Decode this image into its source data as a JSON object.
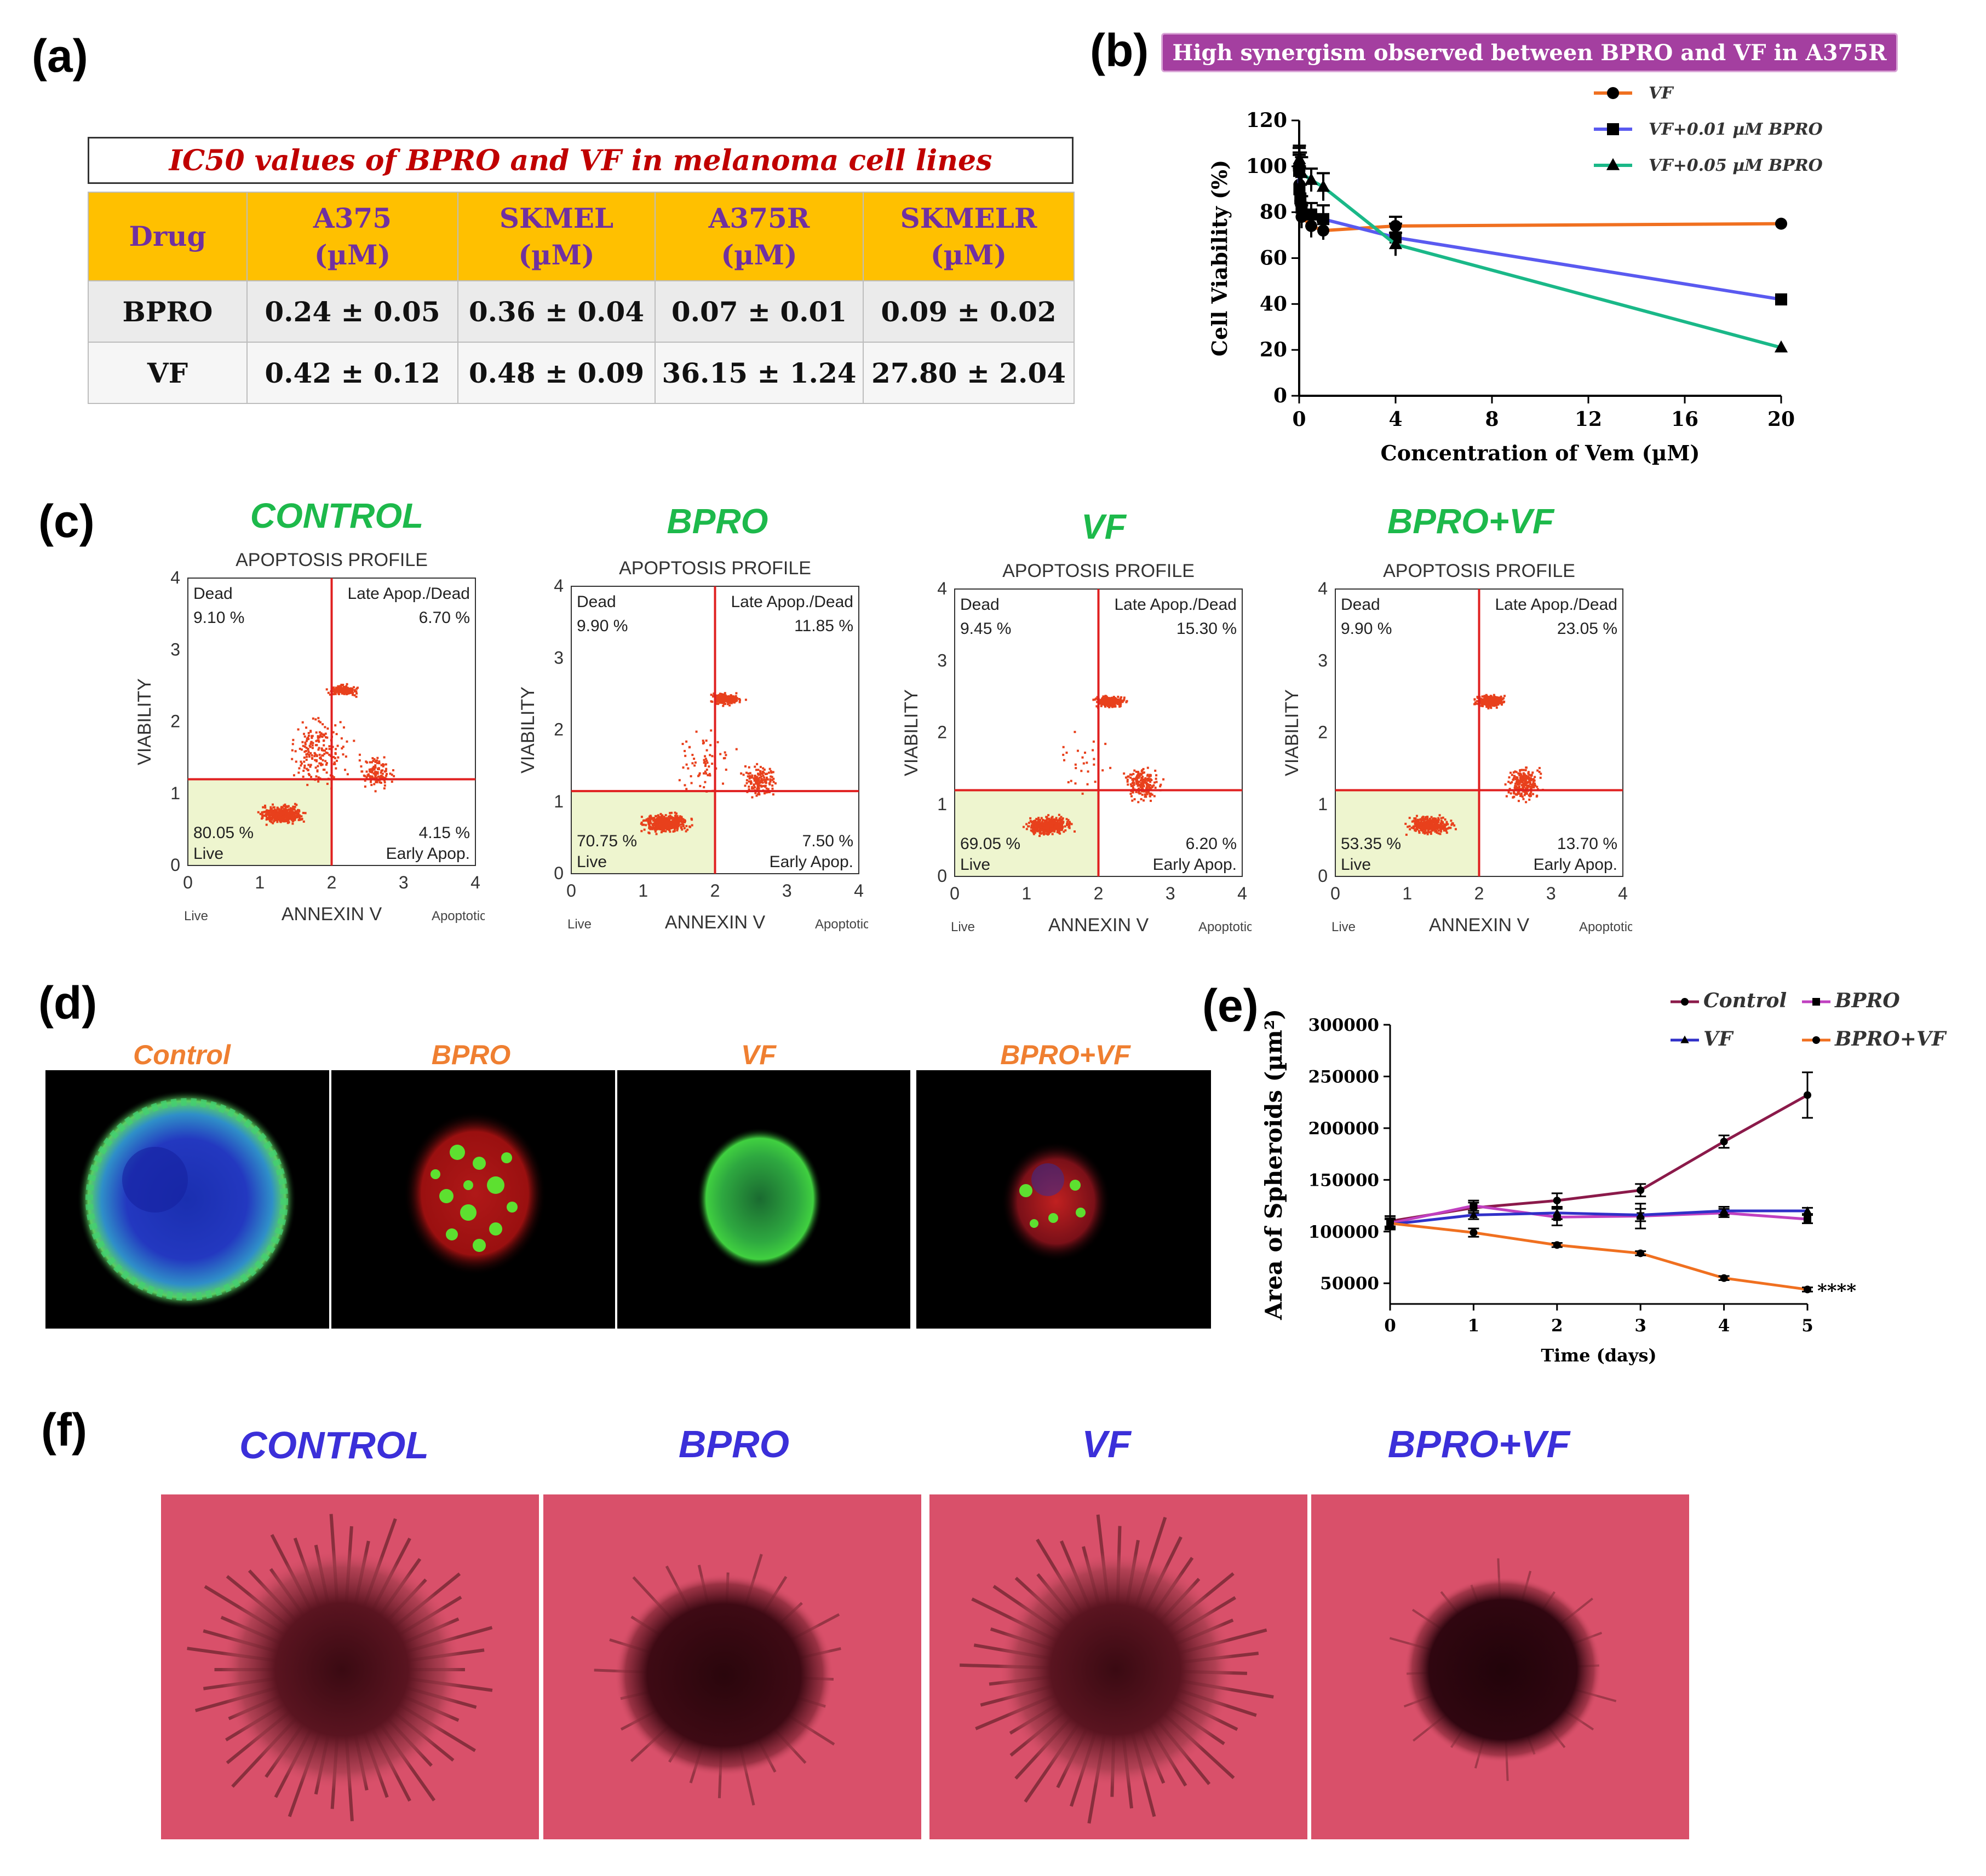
{
  "panel_labels": {
    "a": "(a)",
    "b": "(b)",
    "c": "(c)",
    "d": "(d)",
    "e": "(e)",
    "f": "(f)"
  },
  "table": {
    "title": "IC50 values of BPRO and VF in melanoma cell lines",
    "headers": [
      {
        "line1": "Drug",
        "line2": ""
      },
      {
        "line1": "A375",
        "line2": "(µM)"
      },
      {
        "line1": "SKMEL",
        "line2": "(µM)"
      },
      {
        "line1": "A375R",
        "line2": "(µM)"
      },
      {
        "line1": "SKMELR",
        "line2": "(µM)"
      }
    ],
    "rows": [
      [
        "BPRO",
        "0.24 ± 0.05",
        "0.36 ± 0.04",
        "0.07 ± 0.01",
        "0.09 ± 0.02"
      ],
      [
        "VF",
        "0.42 ± 0.12",
        "0.48 ± 0.09",
        "36.15 ± 1.24",
        "27.80 ± 2.04"
      ]
    ]
  },
  "banner": "High synergism observed between BPRO and VF in A375R",
  "flow_titles": [
    "CONTROL",
    "BPRO",
    "VF",
    "BPRO+VF"
  ],
  "spheroid_titles": [
    "Control",
    "BPRO",
    "VF",
    "BPRO+VF"
  ],
  "brightfield_titles": [
    "CONTROL",
    "BPRO",
    "VF",
    "BPRO+VF"
  ],
  "colors": {
    "table_header_bg": "#ffc000",
    "table_header_text": "#7030a0",
    "table_title": "#c00000",
    "banner_bg": "#a43fa0",
    "flow_title": "#1db94b",
    "spheroid_title": "#ef7f31",
    "brightfield_title": "#3b2fd9",
    "flow_points": "#e8401c",
    "flow_lines": "#e02020",
    "flow_live_fill": "#eef5cf"
  },
  "chart_data": [
    {
      "type": "line",
      "panel": "b",
      "xlabel": "Concentration of Vem (µM)",
      "ylabel": "Cell Viability (%)",
      "xlim": [
        0,
        20
      ],
      "ylim": [
        0,
        120
      ],
      "xticks": [
        0,
        4,
        8,
        12,
        16,
        20
      ],
      "yticks": [
        0,
        20,
        40,
        60,
        80,
        100,
        120
      ],
      "legend_position": "top-right",
      "series": [
        {
          "name": "VF",
          "color": "#f07020",
          "marker": "circle",
          "x": [
            0,
            0.01,
            0.05,
            0.1,
            0.5,
            1,
            4,
            20
          ],
          "y": [
            100,
            92,
            85,
            78,
            74,
            72,
            74,
            75
          ],
          "err": [
            6,
            8,
            7,
            5,
            5,
            4,
            4,
            0
          ]
        },
        {
          "name": "VF+0.01 µM BPRO",
          "color": "#5a5af0",
          "marker": "square",
          "x": [
            0,
            0.01,
            0.05,
            0.1,
            0.5,
            1,
            4,
            20
          ],
          "y": [
            98,
            90,
            86,
            82,
            79,
            77,
            69,
            42
          ],
          "err": [
            7,
            9,
            6,
            5,
            5,
            6,
            6,
            0
          ]
        },
        {
          "name": "VF+0.05 µM BPRO",
          "color": "#1ab888",
          "marker": "triangle",
          "x": [
            0,
            0.01,
            0.05,
            0.1,
            0.5,
            1,
            4,
            20
          ],
          "y": [
            100,
            103,
            101,
            97,
            94,
            91,
            66,
            21
          ],
          "err": [
            8,
            6,
            5,
            7,
            5,
            6,
            5,
            0
          ]
        }
      ]
    },
    {
      "type": "scatter",
      "panel": "c",
      "title": "APOPTOSIS PROFILE",
      "xlabel": "ANNEXIN V",
      "ylabel": "VIABILITY",
      "x_left_note": "Live",
      "x_right_note": "Apoptotic",
      "xlim": [
        0,
        4
      ],
      "ylim": [
        0,
        4
      ],
      "ticks": [
        0,
        1,
        2,
        3,
        4
      ],
      "quadrant_labels": {
        "dead": "Dead",
        "late": "Late Apop./Dead",
        "live": "Live",
        "early": "Early Apop."
      },
      "plots": [
        {
          "condition": "CONTROL",
          "dead": "9.10 %",
          "late": "6.70 %",
          "live": "80.05 %",
          "early": "4.15 %",
          "h_line": 1.2,
          "v_line": 2.0
        },
        {
          "condition": "BPRO",
          "dead": "9.90 %",
          "late": "11.85 %",
          "live": "70.75 %",
          "early": "7.50 %",
          "h_line": 1.15,
          "v_line": 2.0
        },
        {
          "condition": "VF",
          "dead": "9.45 %",
          "late": "15.30 %",
          "live": "69.05 %",
          "early": "6.20 %",
          "h_line": 1.2,
          "v_line": 2.0
        },
        {
          "condition": "BPRO+VF",
          "dead": "9.90 %",
          "late": "23.05 %",
          "live": "53.35 %",
          "early": "13.70 %",
          "h_line": 1.2,
          "v_line": 2.0
        }
      ]
    },
    {
      "type": "line",
      "panel": "e",
      "xlabel": "Time (days)",
      "ylabel": "Area of Spheroids (µm²)",
      "xlim": [
        0,
        5
      ],
      "ylim": [
        30000,
        300000
      ],
      "xticks": [
        0,
        1,
        2,
        3,
        4,
        5
      ],
      "yticks": [
        50000,
        100000,
        150000,
        200000,
        250000,
        300000
      ],
      "annotation": "****",
      "series": [
        {
          "name": "Control",
          "color": "#8b1a4a",
          "marker": "circle",
          "x": [
            0,
            1,
            2,
            3,
            4,
            5
          ],
          "y": [
            110000,
            123000,
            130000,
            140000,
            187000,
            232000
          ],
          "err": [
            5000,
            5000,
            7000,
            6000,
            6000,
            22000
          ]
        },
        {
          "name": "BPRO",
          "color": "#c040c0",
          "marker": "square",
          "x": [
            0,
            1,
            2,
            3,
            4,
            5
          ],
          "y": [
            108000,
            125000,
            114000,
            115000,
            118000,
            112000
          ],
          "err": [
            5000,
            5000,
            8000,
            12000,
            4000,
            4000
          ]
        },
        {
          "name": "VF",
          "color": "#3030c8",
          "marker": "triangle",
          "x": [
            0,
            1,
            2,
            3,
            4,
            5
          ],
          "y": [
            107000,
            116000,
            118000,
            116000,
            120000,
            120000
          ],
          "err": [
            5000,
            4000,
            6000,
            6000,
            4000,
            3000
          ]
        },
        {
          "name": "BPRO+VF",
          "color": "#f07020",
          "marker": "circle",
          "x": [
            0,
            1,
            2,
            3,
            4,
            5
          ],
          "y": [
            108000,
            99000,
            87000,
            79000,
            55000,
            44000
          ],
          "err": [
            4000,
            4000,
            2000,
            2000,
            2000,
            2000
          ]
        }
      ]
    }
  ]
}
